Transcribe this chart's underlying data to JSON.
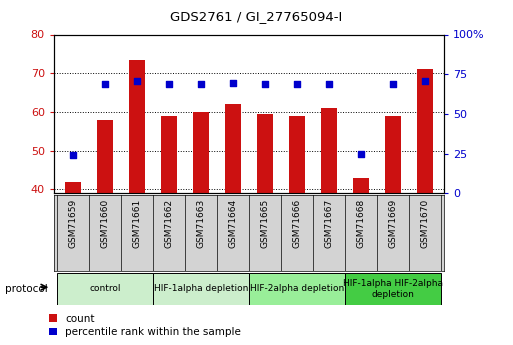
{
  "title": "GDS2761 / GI_27765094-I",
  "samples": [
    "GSM71659",
    "GSM71660",
    "GSM71661",
    "GSM71662",
    "GSM71663",
    "GSM71664",
    "GSM71665",
    "GSM71666",
    "GSM71667",
    "GSM71668",
    "GSM71669",
    "GSM71670"
  ],
  "counts": [
    42,
    58,
    73.5,
    59,
    60,
    62,
    59.5,
    59,
    61,
    43,
    59,
    71
  ],
  "percentile_ranks": [
    24,
    69,
    71,
    69,
    69,
    69.5,
    69,
    69,
    69,
    25,
    69,
    71
  ],
  "ylim_left": [
    39,
    80
  ],
  "ylim_right": [
    0,
    100
  ],
  "yticks_left": [
    40,
    50,
    60,
    70,
    80
  ],
  "yticks_right": [
    0,
    25,
    50,
    75,
    100
  ],
  "bar_color": "#cc1111",
  "dot_color": "#0000cc",
  "tick_bg_color": "#d3d3d3",
  "protocol_groups": [
    {
      "label": "control",
      "start": 0,
      "end": 2,
      "color": "#cceecc"
    },
    {
      "label": "HIF-1alpha depletion",
      "start": 3,
      "end": 5,
      "color": "#cceecc"
    },
    {
      "label": "HIF-2alpha depletion",
      "start": 6,
      "end": 8,
      "color": "#99ee99"
    },
    {
      "label": "HIF-1alpha HIF-2alpha\ndepletion",
      "start": 9,
      "end": 11,
      "color": "#44cc44"
    }
  ],
  "legend_count_label": "count",
  "legend_pct_label": "percentile rank within the sample",
  "bar_width": 0.5,
  "xlim": [
    -0.6,
    11.6
  ]
}
